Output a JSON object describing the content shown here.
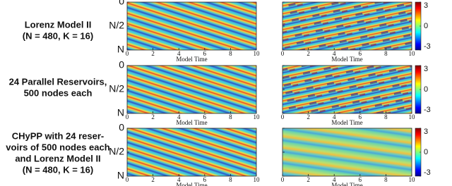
{
  "chart_data": [
    {
      "type": "heatmap",
      "title": [
        "Lorenz Model II",
        "(N = 480, K = 16)"
      ],
      "xlabel": "Model Time",
      "xlim": [
        0,
        10
      ],
      "xticks": [
        0,
        2,
        4,
        6,
        8,
        10
      ],
      "ylim": [
        0,
        480
      ],
      "yticks": [
        0,
        {
          "value": 240,
          "label": "N/2"
        },
        {
          "value": 480,
          "label": "N"
        }
      ],
      "clim": [
        -3,
        3
      ],
      "cticks": [
        -3,
        0,
        3
      ],
      "colormap": "jet"
    },
    {
      "type": "heatmap",
      "title": [
        "24 Parallel Reservoirs,",
        "500 nodes each"
      ],
      "xlabel": "Model Time",
      "xlim": [
        0,
        10
      ],
      "xticks": [
        0,
        2,
        4,
        6,
        8,
        10
      ],
      "ylim": [
        0,
        480
      ],
      "yticks": [
        0,
        {
          "value": 240,
          "label": "N/2"
        },
        {
          "value": 480,
          "label": "N"
        }
      ],
      "clim": [
        -3,
        3
      ],
      "cticks": [
        -3,
        0,
        3
      ],
      "colormap": "jet"
    },
    {
      "type": "heatmap",
      "title": [
        "CHyPP with 24 reser-",
        "voirs of 500 nodes each",
        "and Lorenz Model II",
        "(N = 480, K = 16)"
      ],
      "xlabel": "Model Time",
      "xlim": [
        0,
        10
      ],
      "xticks": [
        0,
        2,
        4,
        6,
        8,
        10
      ],
      "ylim": [
        0,
        480
      ],
      "yticks": [
        0,
        {
          "value": 240,
          "label": "N/2"
        },
        {
          "value": 480,
          "label": "N"
        }
      ],
      "clim": [
        -3,
        3
      ],
      "cticks": [
        -3,
        0,
        3
      ],
      "colormap": "jet"
    }
  ]
}
